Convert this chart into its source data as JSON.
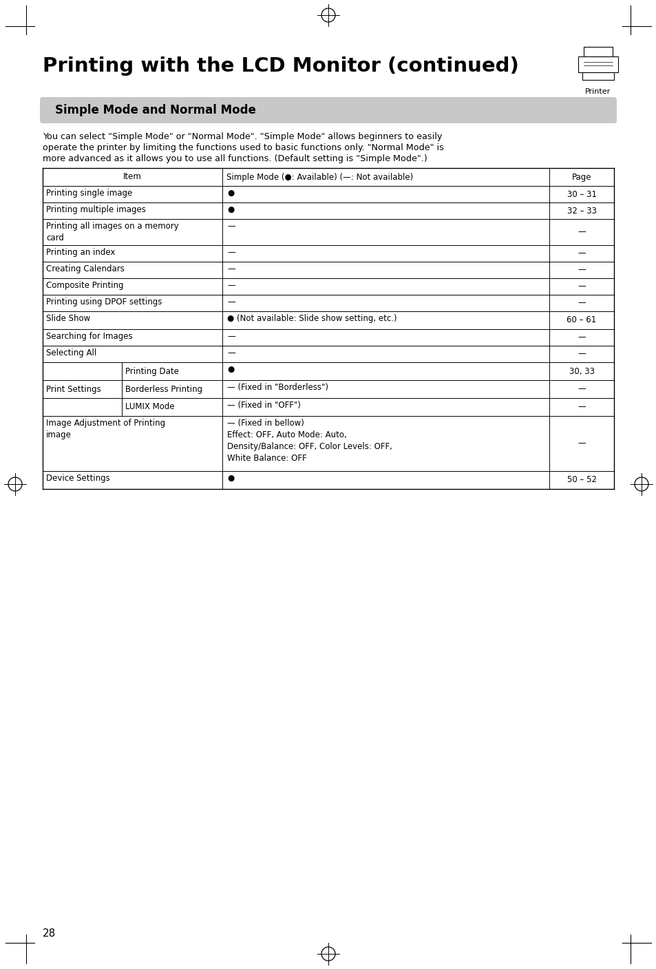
{
  "title": "Printing with the LCD Monitor (continued)",
  "section_title": "Simple Mode and Normal Mode",
  "section_bg": "#c8c8c8",
  "desc_line1": "You can select \"Simple Mode\" or \"Normal Mode\". \"Simple Mode\" allows beginners to easily",
  "desc_line2": "operate the printer by limiting the functions used to basic functions only. \"Normal Mode\" is",
  "desc_line3": "more advanced as it allows you to use all functions. (Default setting is \"Simple Mode\".)",
  "page_number": "28",
  "printer_label": "Printer",
  "table_header_col0": "Item",
  "table_header_col1": "Simple Mode (●: Available) (—: Not available)",
  "table_header_col2": "Page",
  "rows": [
    {
      "item": "Printing single image",
      "sub": "",
      "simple": "●",
      "page": "30 – 31",
      "ps": false
    },
    {
      "item": "Printing multiple images",
      "sub": "",
      "simple": "●",
      "page": "32 – 33",
      "ps": false
    },
    {
      "item": "Printing all images on a memory\ncard",
      "sub": "",
      "simple": "—",
      "page": "—",
      "ps": false
    },
    {
      "item": "Printing an index",
      "sub": "",
      "simple": "—",
      "page": "—",
      "ps": false
    },
    {
      "item": "Creating Calendars",
      "sub": "",
      "simple": "—",
      "page": "—",
      "ps": false
    },
    {
      "item": "Composite Printing",
      "sub": "",
      "simple": "—",
      "page": "—",
      "ps": false
    },
    {
      "item": "Printing using DPOF settings",
      "sub": "",
      "simple": "—",
      "page": "—",
      "ps": false
    },
    {
      "item": "Slide Show",
      "sub": "",
      "simple": "● (Not available: Slide show setting, etc.)",
      "page": "60 – 61",
      "ps": false
    },
    {
      "item": "Searching for Images",
      "sub": "",
      "simple": "—",
      "page": "—",
      "ps": false
    },
    {
      "item": "Selecting All",
      "sub": "",
      "simple": "—",
      "page": "—",
      "ps": false
    },
    {
      "item": "Print Settings",
      "sub": "Printing Date",
      "simple": "●",
      "page": "30, 33",
      "ps": true
    },
    {
      "item": "Print Settings",
      "sub": "Borderless Printing",
      "simple": "— (Fixed in \"Borderless\")",
      "page": "—",
      "ps": true
    },
    {
      "item": "Print Settings",
      "sub": "LUMIX Mode",
      "simple": "— (Fixed in \"OFF\")",
      "page": "—",
      "ps": true
    },
    {
      "item": "Image Adjustment of Printing\nimage",
      "sub": "",
      "simple": "— (Fixed in bellow)\nEffect: OFF, Auto Mode: Auto,\nDensity/Balance: OFF, Color Levels: OFF,\nWhite Balance: OFF",
      "page": "—",
      "ps": false
    },
    {
      "item": "Device Settings",
      "sub": "",
      "simple": "●",
      "page": "50 – 52",
      "ps": false
    }
  ],
  "bg_color": "#ffffff",
  "text_color": "#000000",
  "font_size_title": 21,
  "font_size_section": 12,
  "font_size_body": 9.2,
  "font_size_table": 8.5,
  "font_size_page_num": 11
}
